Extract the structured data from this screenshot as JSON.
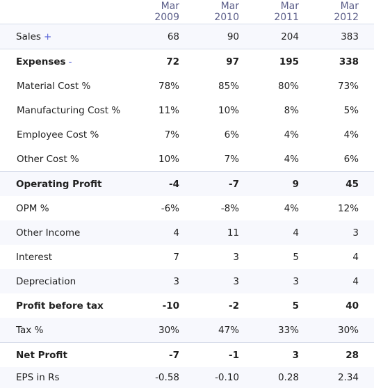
{
  "periods": [
    "Mar 2009",
    "Mar 2010",
    "Mar 2011",
    "Mar 2012"
  ],
  "rows": [
    {
      "label": "Sales",
      "toggle": "+",
      "values": [
        "68",
        "90",
        "204",
        "383"
      ]
    },
    {
      "label": "Expenses",
      "toggle": "-",
      "values": [
        "72",
        "97",
        "195",
        "338"
      ]
    },
    {
      "label": "Material Cost %",
      "values": [
        "78%",
        "85%",
        "80%",
        "73%"
      ]
    },
    {
      "label": "Manufacturing Cost %",
      "values": [
        "11%",
        "10%",
        "8%",
        "5%"
      ]
    },
    {
      "label": "Employee Cost %",
      "values": [
        "7%",
        "6%",
        "4%",
        "4%"
      ]
    },
    {
      "label": "Other Cost %",
      "values": [
        "10%",
        "7%",
        "4%",
        "6%"
      ]
    },
    {
      "label": "Operating Profit",
      "values": [
        "-4",
        "-7",
        "9",
        "45"
      ]
    },
    {
      "label": "OPM %",
      "values": [
        "-6%",
        "-8%",
        "4%",
        "12%"
      ]
    },
    {
      "label": "Other Income",
      "values": [
        "4",
        "11",
        "4",
        "3"
      ]
    },
    {
      "label": "Interest",
      "values": [
        "7",
        "3",
        "5",
        "4"
      ]
    },
    {
      "label": "Depreciation",
      "values": [
        "3",
        "3",
        "3",
        "4"
      ]
    },
    {
      "label": "Profit before tax",
      "values": [
        "-10",
        "-2",
        "5",
        "40"
      ]
    },
    {
      "label": "Tax %",
      "values": [
        "30%",
        "47%",
        "33%",
        "30%"
      ]
    },
    {
      "label": "Net Profit",
      "values": [
        "-7",
        "-1",
        "3",
        "28"
      ]
    },
    {
      "label": "EPS in Rs",
      "values": [
        "-0.58",
        "-0.10",
        "0.28",
        "2.34"
      ]
    }
  ],
  "colors": {
    "header_text": "#5c5f8a",
    "toggle": "#5c66d8",
    "stripe": "#f7f8fd",
    "border": "#d6dcea"
  }
}
